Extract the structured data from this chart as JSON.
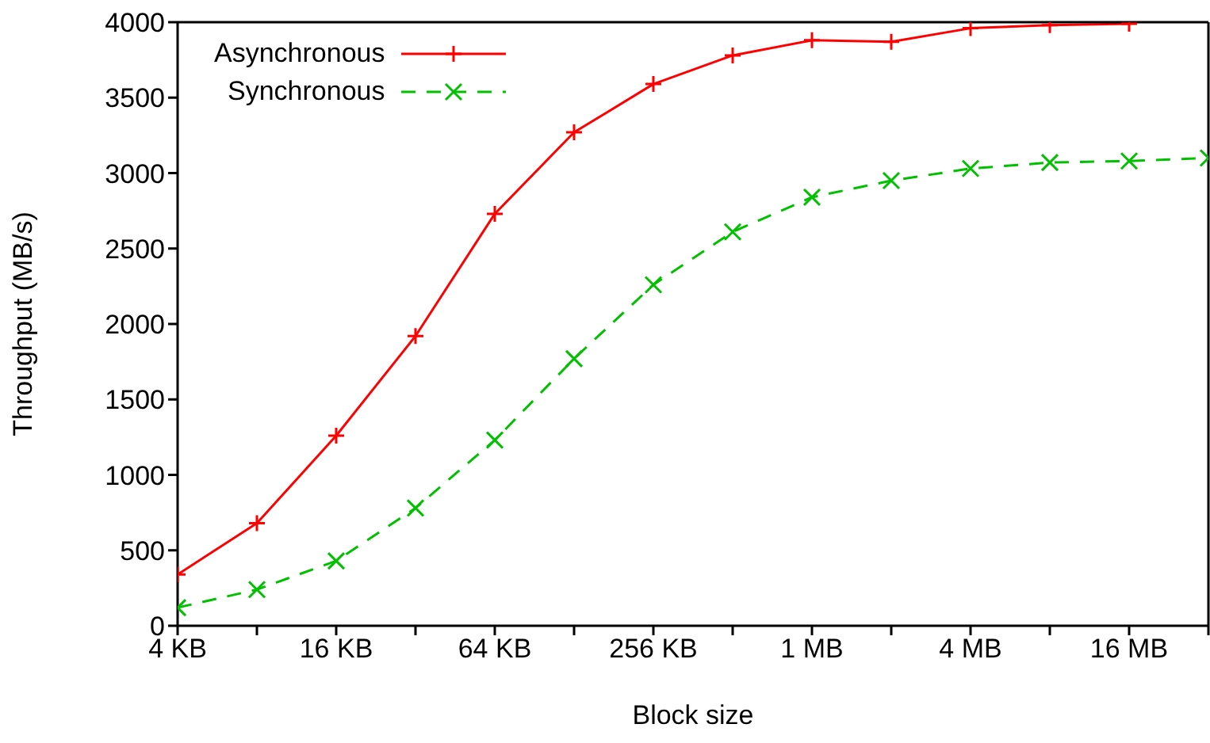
{
  "chart_data": {
    "type": "line",
    "xlabel": "Block size",
    "ylabel": "Throughput (MB/s)",
    "categories": [
      "4 KB",
      null,
      "16 KB",
      null,
      "64 KB",
      null,
      "256 KB",
      null,
      "1 MB",
      null,
      "4 MB",
      null,
      "16 MB",
      null
    ],
    "ylim": [
      0,
      4000
    ],
    "yticks": [
      0,
      500,
      1000,
      1500,
      2000,
      2500,
      3000,
      3500,
      4000
    ],
    "legend": "top left",
    "series": [
      {
        "name": "Asynchronous",
        "color": "#ff0000",
        "marker": "plus",
        "line_style": "solid",
        "values": [
          340,
          680,
          1260,
          1920,
          2730,
          3270,
          3590,
          3780,
          3880,
          3870,
          3960,
          3980,
          3990,
          null
        ]
      },
      {
        "name": "Synchronous",
        "color": "#00c000",
        "marker": "cross",
        "line_style": "dashed",
        "values": [
          120,
          240,
          430,
          780,
          1230,
          1770,
          2260,
          2610,
          2840,
          2950,
          3030,
          3070,
          3080,
          3100
        ]
      }
    ]
  }
}
